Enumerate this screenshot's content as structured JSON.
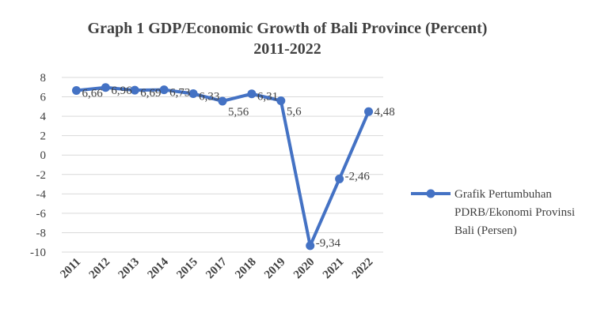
{
  "chart_data": {
    "type": "line",
    "title_line1": "Graph 1 GDP/Economic Growth of Bali Province (Percent)",
    "title_line2": "2011-2022",
    "categories": [
      "2011",
      "2012",
      "2013",
      "2014",
      "2015",
      "2017",
      "2018",
      "2019",
      "2020",
      "2021",
      "2022"
    ],
    "series": [
      {
        "name": "Grafik Pertumbuhan PDRB/Ekonomi Provinsi Bali (Persen)",
        "values": [
          6.66,
          6.96,
          6.69,
          6.73,
          6.33,
          5.56,
          6.31,
          5.6,
          -9.34,
          -2.46,
          4.48
        ],
        "labels": [
          "6,66",
          "6,96",
          "6,69",
          "6,73",
          "6,33",
          "5,56",
          "6,31",
          "5,6",
          "-9,34",
          "-2,46",
          "4,48"
        ],
        "color": "#4472C4"
      }
    ],
    "legend_lines": [
      "Grafik Pertumbuhan",
      "PDRB/Ekonomi Provinsi",
      "Bali (Persen)"
    ],
    "ylim": [
      -10,
      8
    ],
    "yticks": [
      8,
      6,
      4,
      2,
      0,
      -2,
      -4,
      -6,
      -8,
      -10
    ],
    "grid": true,
    "legend_position": "right"
  }
}
